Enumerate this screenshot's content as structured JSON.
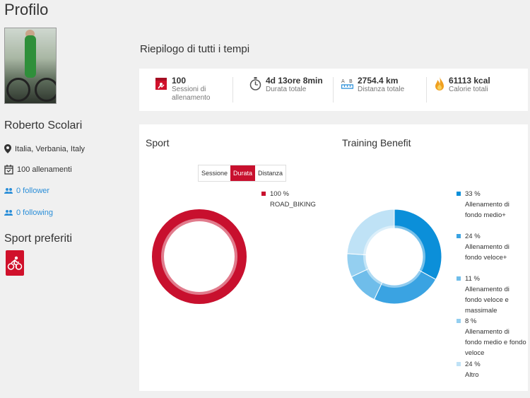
{
  "profile": {
    "title": "Profilo",
    "name": "Roberto Scolari",
    "location": "Italia, Verbania, Italy",
    "workouts": "100 allenamenti",
    "followers": "0 follower",
    "following": "0 following",
    "favorite_sports_title": "Sport preferiti",
    "favorite_sport_icon": "cycling-icon"
  },
  "summary": {
    "title": "Riepilogo di tutti i tempi",
    "stats": [
      {
        "value": "100",
        "label": "Sessioni di allenamento",
        "icon": "calendar-icon",
        "color": "#d0112b"
      },
      {
        "value": "4d 13ore 8min",
        "label": "Durata totale",
        "icon": "stopwatch-icon",
        "color": "#555555"
      },
      {
        "value": "2754.4 km",
        "label": "Distanza totale",
        "icon": "distance-icon",
        "color": "#2a8ed8"
      },
      {
        "value": "61113 kcal",
        "label": "Calorie totali",
        "icon": "flame-icon",
        "color": "#f0a020"
      }
    ]
  },
  "sport_chart": {
    "title": "Sport",
    "toggle": [
      "Sessione",
      "Durata",
      "Distanza"
    ],
    "active_toggle": "Durata",
    "legend": [
      {
        "percent": "100 %",
        "label": "ROAD_BIKING",
        "color": "#c8102e"
      }
    ]
  },
  "training_chart": {
    "title": "Training Benefit",
    "legend": [
      {
        "percent": "33 %",
        "label": "Allenamento di fondo medio+",
        "color": "#0b8fd9"
      },
      {
        "percent": "24 %",
        "label": "Allenamento di fondo veloce+",
        "color": "#3aa3e2"
      },
      {
        "percent": "11 %",
        "label": "Allenamento di fondo veloce e massimale",
        "color": "#6fbdea"
      },
      {
        "percent": "8 %",
        "label": "Allenamento di fondo medio e fondo veloce",
        "color": "#94cff0"
      },
      {
        "percent": "24 %",
        "label": "Altro",
        "color": "#bfe2f6"
      }
    ]
  },
  "chart_data": [
    {
      "type": "pie",
      "title": "Sport",
      "categories": [
        "ROAD_BIKING"
      ],
      "values": [
        100
      ]
    },
    {
      "type": "pie",
      "title": "Training Benefit",
      "categories": [
        "Allenamento di fondo medio+",
        "Allenamento di fondo veloce+",
        "Allenamento di fondo veloce e massimale",
        "Allenamento di fondo medio e fondo veloce",
        "Altro"
      ],
      "values": [
        33,
        24,
        11,
        8,
        24
      ]
    }
  ]
}
